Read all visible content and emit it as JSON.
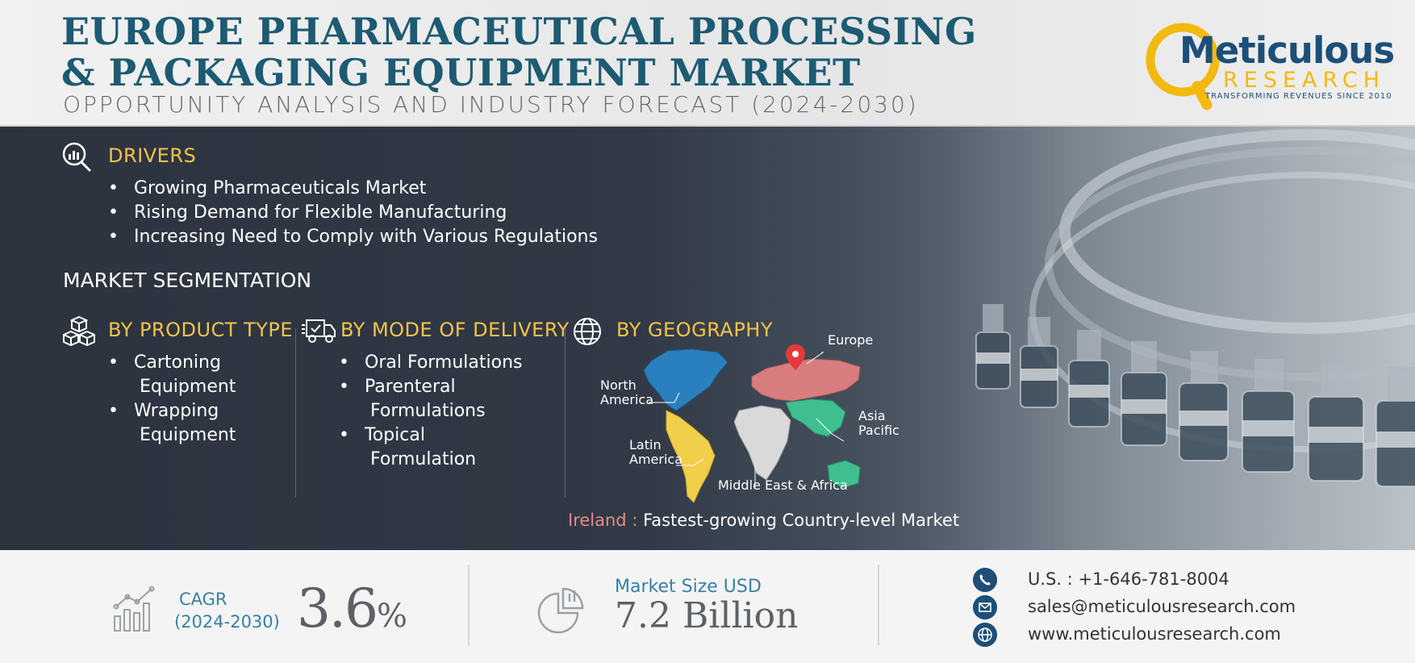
{
  "header": {
    "title_line1": "EUROPE PHARMACEUTICAL PROCESSING",
    "title_line2": "& PACKAGING EQUIPMENT MARKET",
    "subtitle": "OPPORTUNITY ANALYSIS AND INDUSTRY FORECAST (2024-2030)"
  },
  "logo": {
    "name": "Meticulous",
    "sub": "RESEARCH",
    "tagline": "TRANSFORMING REVENUES SINCE 2010",
    "icon": "magnifier-ring-logo"
  },
  "drivers": {
    "heading": "DRIVERS",
    "icon": "magnifier-chart-icon",
    "items": [
      "Growing Pharmaceuticals Market",
      "Rising Demand for Flexible Manufacturing",
      "Increasing Need to Comply with Various Regulations"
    ]
  },
  "segmentation": {
    "heading": "MARKET SEGMENTATION",
    "product_type": {
      "heading": "BY PRODUCT TYPE",
      "icon": "boxes-icon",
      "items": [
        [
          "Cartoning",
          "Equipment"
        ],
        [
          "Wrapping",
          "Equipment"
        ]
      ]
    },
    "mode_of_delivery": {
      "heading": "BY MODE OF DELIVERY",
      "icon": "delivery-truck-icon",
      "items": [
        [
          "Oral Formulations"
        ],
        [
          "Parenteral",
          "Formulations"
        ],
        [
          "Topical",
          "Formulation"
        ]
      ]
    },
    "geography": {
      "heading": "BY GEOGRAPHY",
      "icon": "globe-icon",
      "regions": {
        "europe": "Europe",
        "north_america": [
          "North",
          "America"
        ],
        "asia_pacific": [
          "Asia",
          "Pacific"
        ],
        "latin_america": [
          "Latin",
          "America"
        ],
        "mea": "Middle East & Africa"
      },
      "region_colors": {
        "north_america": "#2a7fbf",
        "europe": "#d87d7d",
        "asia_pacific": "#3fbf8f",
        "latin_america": "#f2cf4a",
        "mea": "#d9d9d9"
      }
    },
    "highlight": {
      "country": "Ireland",
      "separator": " : ",
      "text": "Fastest-growing Country-level Market"
    }
  },
  "footer": {
    "cagr_label_1": "CAGR",
    "cagr_label_2": "(2024-2030)",
    "cagr_value": "3.6",
    "cagr_unit": "%",
    "market_size_label": "Market Size USD",
    "market_size_value": "7.2 Billion",
    "phone": "U.S. : +1-646-781-8004",
    "email": "sales@meticulousresearch.com",
    "website": "www.meticulousresearch.com"
  },
  "colors": {
    "title": "#1d5b73",
    "accent_yellow": "#f6c34a",
    "panel_dark": "#2c333f",
    "footer_blue": "#3a7fa4",
    "logo_blue": "#1d4f78",
    "logo_yellow": "#f2b90f"
  }
}
